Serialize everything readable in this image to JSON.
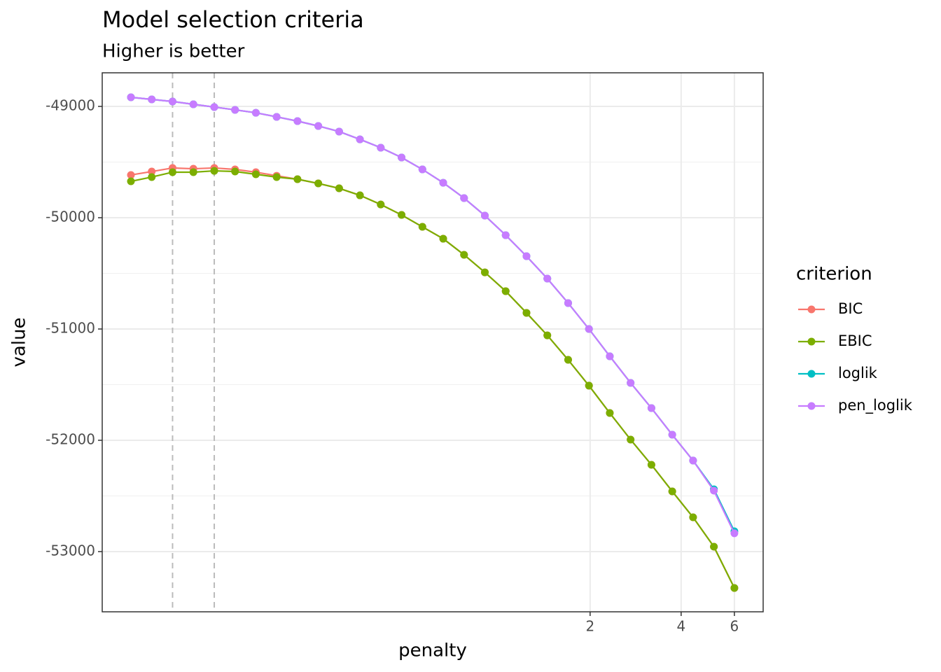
{
  "chart_data": {
    "type": "line",
    "title": "Model selection criteria",
    "subtitle": "Higher is better",
    "x_label": "penalty",
    "y_label": "value",
    "legend_title": "criterion",
    "legend_position": "right",
    "x_log": true,
    "grid": true,
    "x": [
      0.0606,
      0.071,
      0.0832,
      0.0975,
      0.1143,
      0.1339,
      0.1569,
      0.1838,
      0.2154,
      0.2524,
      0.2958,
      0.3466,
      0.4061,
      0.4759,
      0.5577,
      0.6535,
      0.7658,
      0.8973,
      1.0515,
      1.2321,
      1.4438,
      1.6919,
      1.9826,
      2.3232,
      2.7224,
      3.1901,
      3.7382,
      4.3804,
      5.133,
      6.0
    ],
    "xlim": [
      0.0487,
      7.47
    ],
    "xticks": [
      2,
      4,
      6
    ],
    "ylim": [
      -53541,
      -48698
    ],
    "yticks": [
      -49000,
      -50000,
      -51000,
      -52000,
      -53000
    ],
    "reference_lines_x": [
      0.0832,
      0.1143
    ],
    "series": [
      {
        "name": "BIC",
        "color": "#F8766D",
        "values": [
          -49616,
          -49585,
          -49553,
          -49560,
          -49553,
          -49566,
          -49591,
          -49623,
          -49654,
          -49692,
          -49736,
          -49799,
          -49881,
          -49975,
          -50082,
          -50189,
          -50333,
          -50491,
          -50660,
          -50855,
          -51057,
          -51277,
          -51509,
          -51755,
          -51994,
          -52220,
          -52459,
          -52692,
          -52956,
          -53327
        ]
      },
      {
        "name": "EBIC",
        "color": "#7CAE00",
        "values": [
          -49673,
          -49635,
          -49591,
          -49591,
          -49579,
          -49585,
          -49610,
          -49635,
          -49654,
          -49692,
          -49736,
          -49799,
          -49881,
          -49975,
          -50082,
          -50189,
          -50333,
          -50491,
          -50660,
          -50855,
          -51057,
          -51277,
          -51509,
          -51755,
          -51994,
          -52220,
          -52459,
          -52692,
          -52956,
          -53327
        ]
      },
      {
        "name": "loglik",
        "color": "#00BFC4",
        "values": [
          -48918,
          -48937,
          -48956,
          -48981,
          -49006,
          -49031,
          -49057,
          -49094,
          -49132,
          -49176,
          -49226,
          -49296,
          -49371,
          -49459,
          -49566,
          -49686,
          -49824,
          -49981,
          -50157,
          -50346,
          -50547,
          -50767,
          -51000,
          -51245,
          -51484,
          -51711,
          -51950,
          -52182,
          -52440,
          -52818
        ]
      },
      {
        "name": "pen_loglik",
        "color": "#C77CFF",
        "values": [
          -48918,
          -48937,
          -48956,
          -48981,
          -49006,
          -49031,
          -49057,
          -49094,
          -49132,
          -49176,
          -49226,
          -49296,
          -49371,
          -49459,
          -49566,
          -49686,
          -49824,
          -49981,
          -50157,
          -50346,
          -50547,
          -50767,
          -51000,
          -51245,
          -51484,
          -51711,
          -51950,
          -52182,
          -52453,
          -52836
        ]
      }
    ]
  }
}
